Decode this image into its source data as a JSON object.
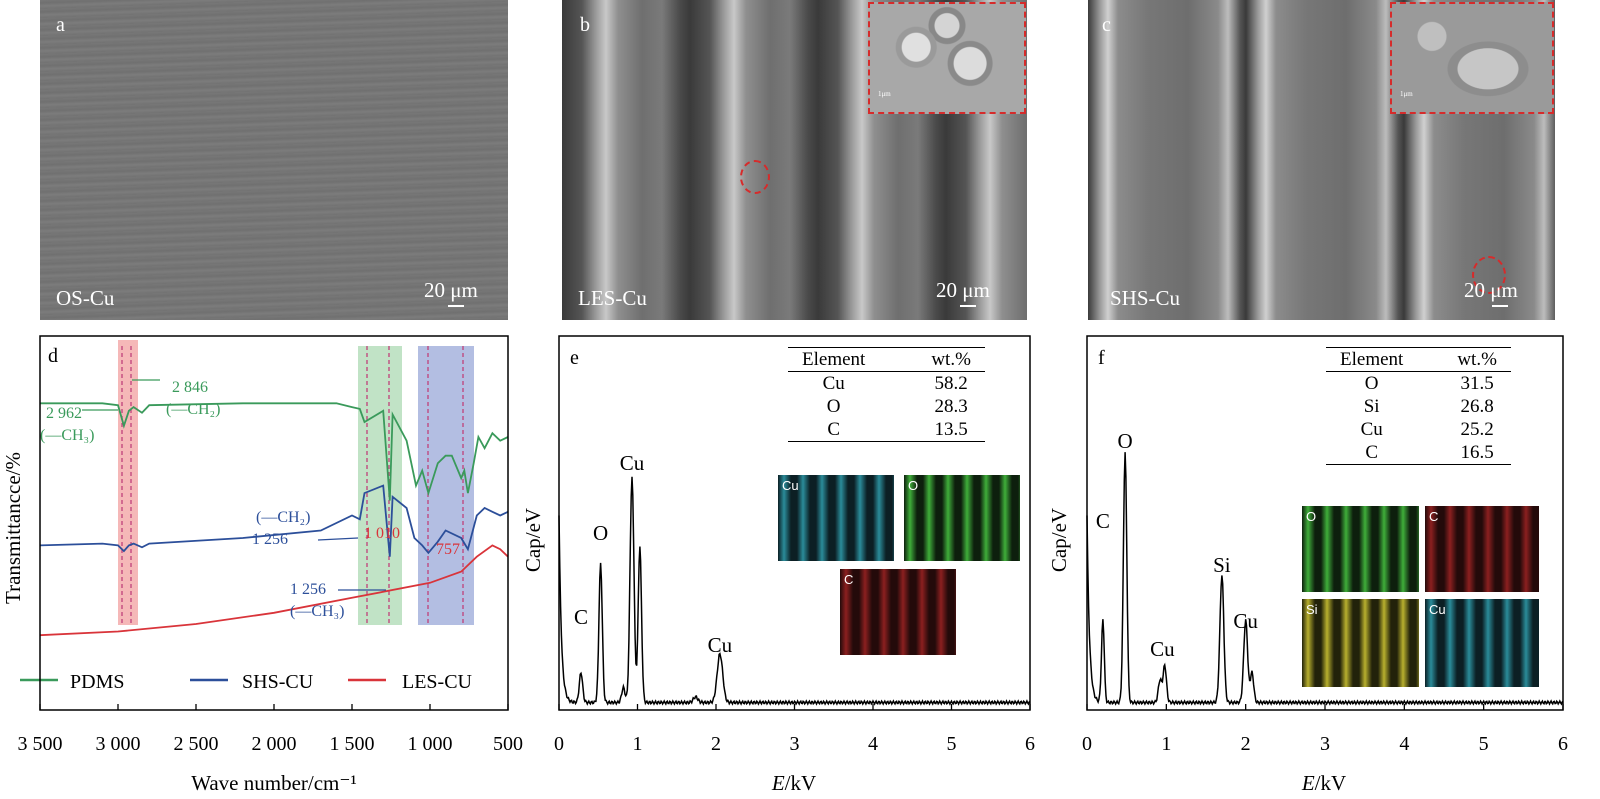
{
  "sem": {
    "a": {
      "letter": "a",
      "sample": "OS-Cu",
      "scale": "20 μm"
    },
    "b": {
      "letter": "b",
      "sample": "LES-Cu",
      "scale": "20 μm",
      "inset_scale": "1μm"
    },
    "c": {
      "letter": "c",
      "sample": "SHS-Cu",
      "scale": "20 μm",
      "inset_scale": "1μm"
    }
  },
  "ftir": {
    "letter": "d",
    "ylabel": "Transmittancce/%",
    "xlabel": "Wave number/cm⁻¹",
    "xticks": [
      "3 500",
      "3 000",
      "2 500",
      "2 000",
      "1 500",
      "1 000",
      "500"
    ],
    "legend": [
      "PDMS",
      "SHS-CU",
      "LES-CU"
    ],
    "annotations": {
      "a2962": "2 962",
      "ch3_green": "(—CH₃)",
      "a2846": "2 846",
      "ch2_green": "(—CH₂)",
      "ch2_blue": "(—CH₂)",
      "a1256_top": "1 256",
      "a1010": "1 010",
      "a757": "757",
      "a1256_bottom": "1 256",
      "ch3_blue": "(—CH₃)"
    }
  },
  "colors": {
    "pdms": "#3a9a5b",
    "shs": "#2c4f9a",
    "les": "#d9343a"
  },
  "chart_data": [
    {
      "type": "line",
      "panel": "d",
      "ylabel": "Transmittancce/%",
      "xlabel": "Wave number/cm⁻¹",
      "xlim": [
        3500,
        500
      ],
      "series": [
        {
          "name": "PDMS",
          "x": [
            3500,
            3100,
            3000,
            2962,
            2930,
            2900,
            2846,
            2800,
            2200,
            1600,
            1500,
            1450,
            1420,
            1300,
            1258,
            1240,
            1150,
            1090,
            1050,
            1010,
            950,
            900,
            860,
            800,
            780,
            757,
            720,
            690,
            650,
            600,
            550,
            500
          ],
          "y": [
            82,
            82,
            81.5,
            76,
            80,
            81,
            79.5,
            81.5,
            82,
            82,
            81,
            80.5,
            77,
            80,
            56,
            79,
            72,
            60,
            64,
            58,
            66,
            68,
            68,
            62,
            64,
            58,
            66,
            73,
            70,
            74,
            72,
            73
          ]
        },
        {
          "name": "SHS-CU",
          "x": [
            3500,
            3100,
            3000,
            2962,
            2930,
            2900,
            2846,
            2800,
            2200,
            1700,
            1500,
            1450,
            1420,
            1300,
            1258,
            1240,
            1150,
            1100,
            1050,
            1010,
            950,
            900,
            800,
            757,
            700,
            650,
            600,
            550,
            500
          ],
          "y": [
            44,
            44.5,
            44,
            42.5,
            44,
            44.5,
            43.5,
            44.5,
            46,
            48,
            52,
            51,
            58,
            60,
            41,
            57,
            54,
            46,
            44,
            42,
            45,
            48,
            46,
            43,
            52,
            54,
            53,
            52,
            53
          ]
        },
        {
          "name": "LES-CU",
          "x": [
            3500,
            3000,
            2500,
            2000,
            1500,
            1000,
            800,
            700,
            600,
            550,
            500
          ],
          "y": [
            20,
            21,
            23,
            26,
            30,
            34,
            37,
            41,
            44,
            43,
            41
          ]
        }
      ]
    },
    {
      "type": "line",
      "panel": "e",
      "ylabel": "Cap/eV",
      "xlabel": "E/kV",
      "xlim": [
        0,
        6
      ],
      "xticks": [
        "0",
        "1",
        "2",
        "3",
        "4",
        "5",
        "6"
      ],
      "peaks": [
        {
          "label": "C",
          "x": 0.28
        },
        {
          "label": "O",
          "x": 0.53
        },
        {
          "label": "Cu",
          "x": 0.93
        },
        {
          "label": "Cu",
          "x": 2.05
        }
      ],
      "table": {
        "headers": [
          "Element",
          "wt.%"
        ],
        "rows": [
          [
            "Cu",
            "58.2"
          ],
          [
            "O",
            "28.3"
          ],
          [
            "C",
            "13.5"
          ]
        ]
      },
      "maps": [
        "Cu",
        "O",
        "C"
      ]
    },
    {
      "type": "line",
      "panel": "f",
      "ylabel": "Cap/eV",
      "xlabel": "E/kV",
      "xlim": [
        0,
        6
      ],
      "xticks": [
        "0",
        "1",
        "2",
        "3",
        "4",
        "5",
        "6"
      ],
      "peaks": [
        {
          "label": "C",
          "x": 0.2
        },
        {
          "label": "O",
          "x": 0.48
        },
        {
          "label": "Cu",
          "x": 0.95
        },
        {
          "label": "Si",
          "x": 1.7
        },
        {
          "label": "Cu",
          "x": 2.0
        }
      ],
      "table": {
        "headers": [
          "Element",
          "wt.%"
        ],
        "rows": [
          [
            "O",
            "31.5"
          ],
          [
            "Si",
            "26.8"
          ],
          [
            "Cu",
            "25.2"
          ],
          [
            "C",
            "16.5"
          ]
        ]
      },
      "maps": [
        "O",
        "C",
        "Si",
        "Cu"
      ]
    }
  ]
}
